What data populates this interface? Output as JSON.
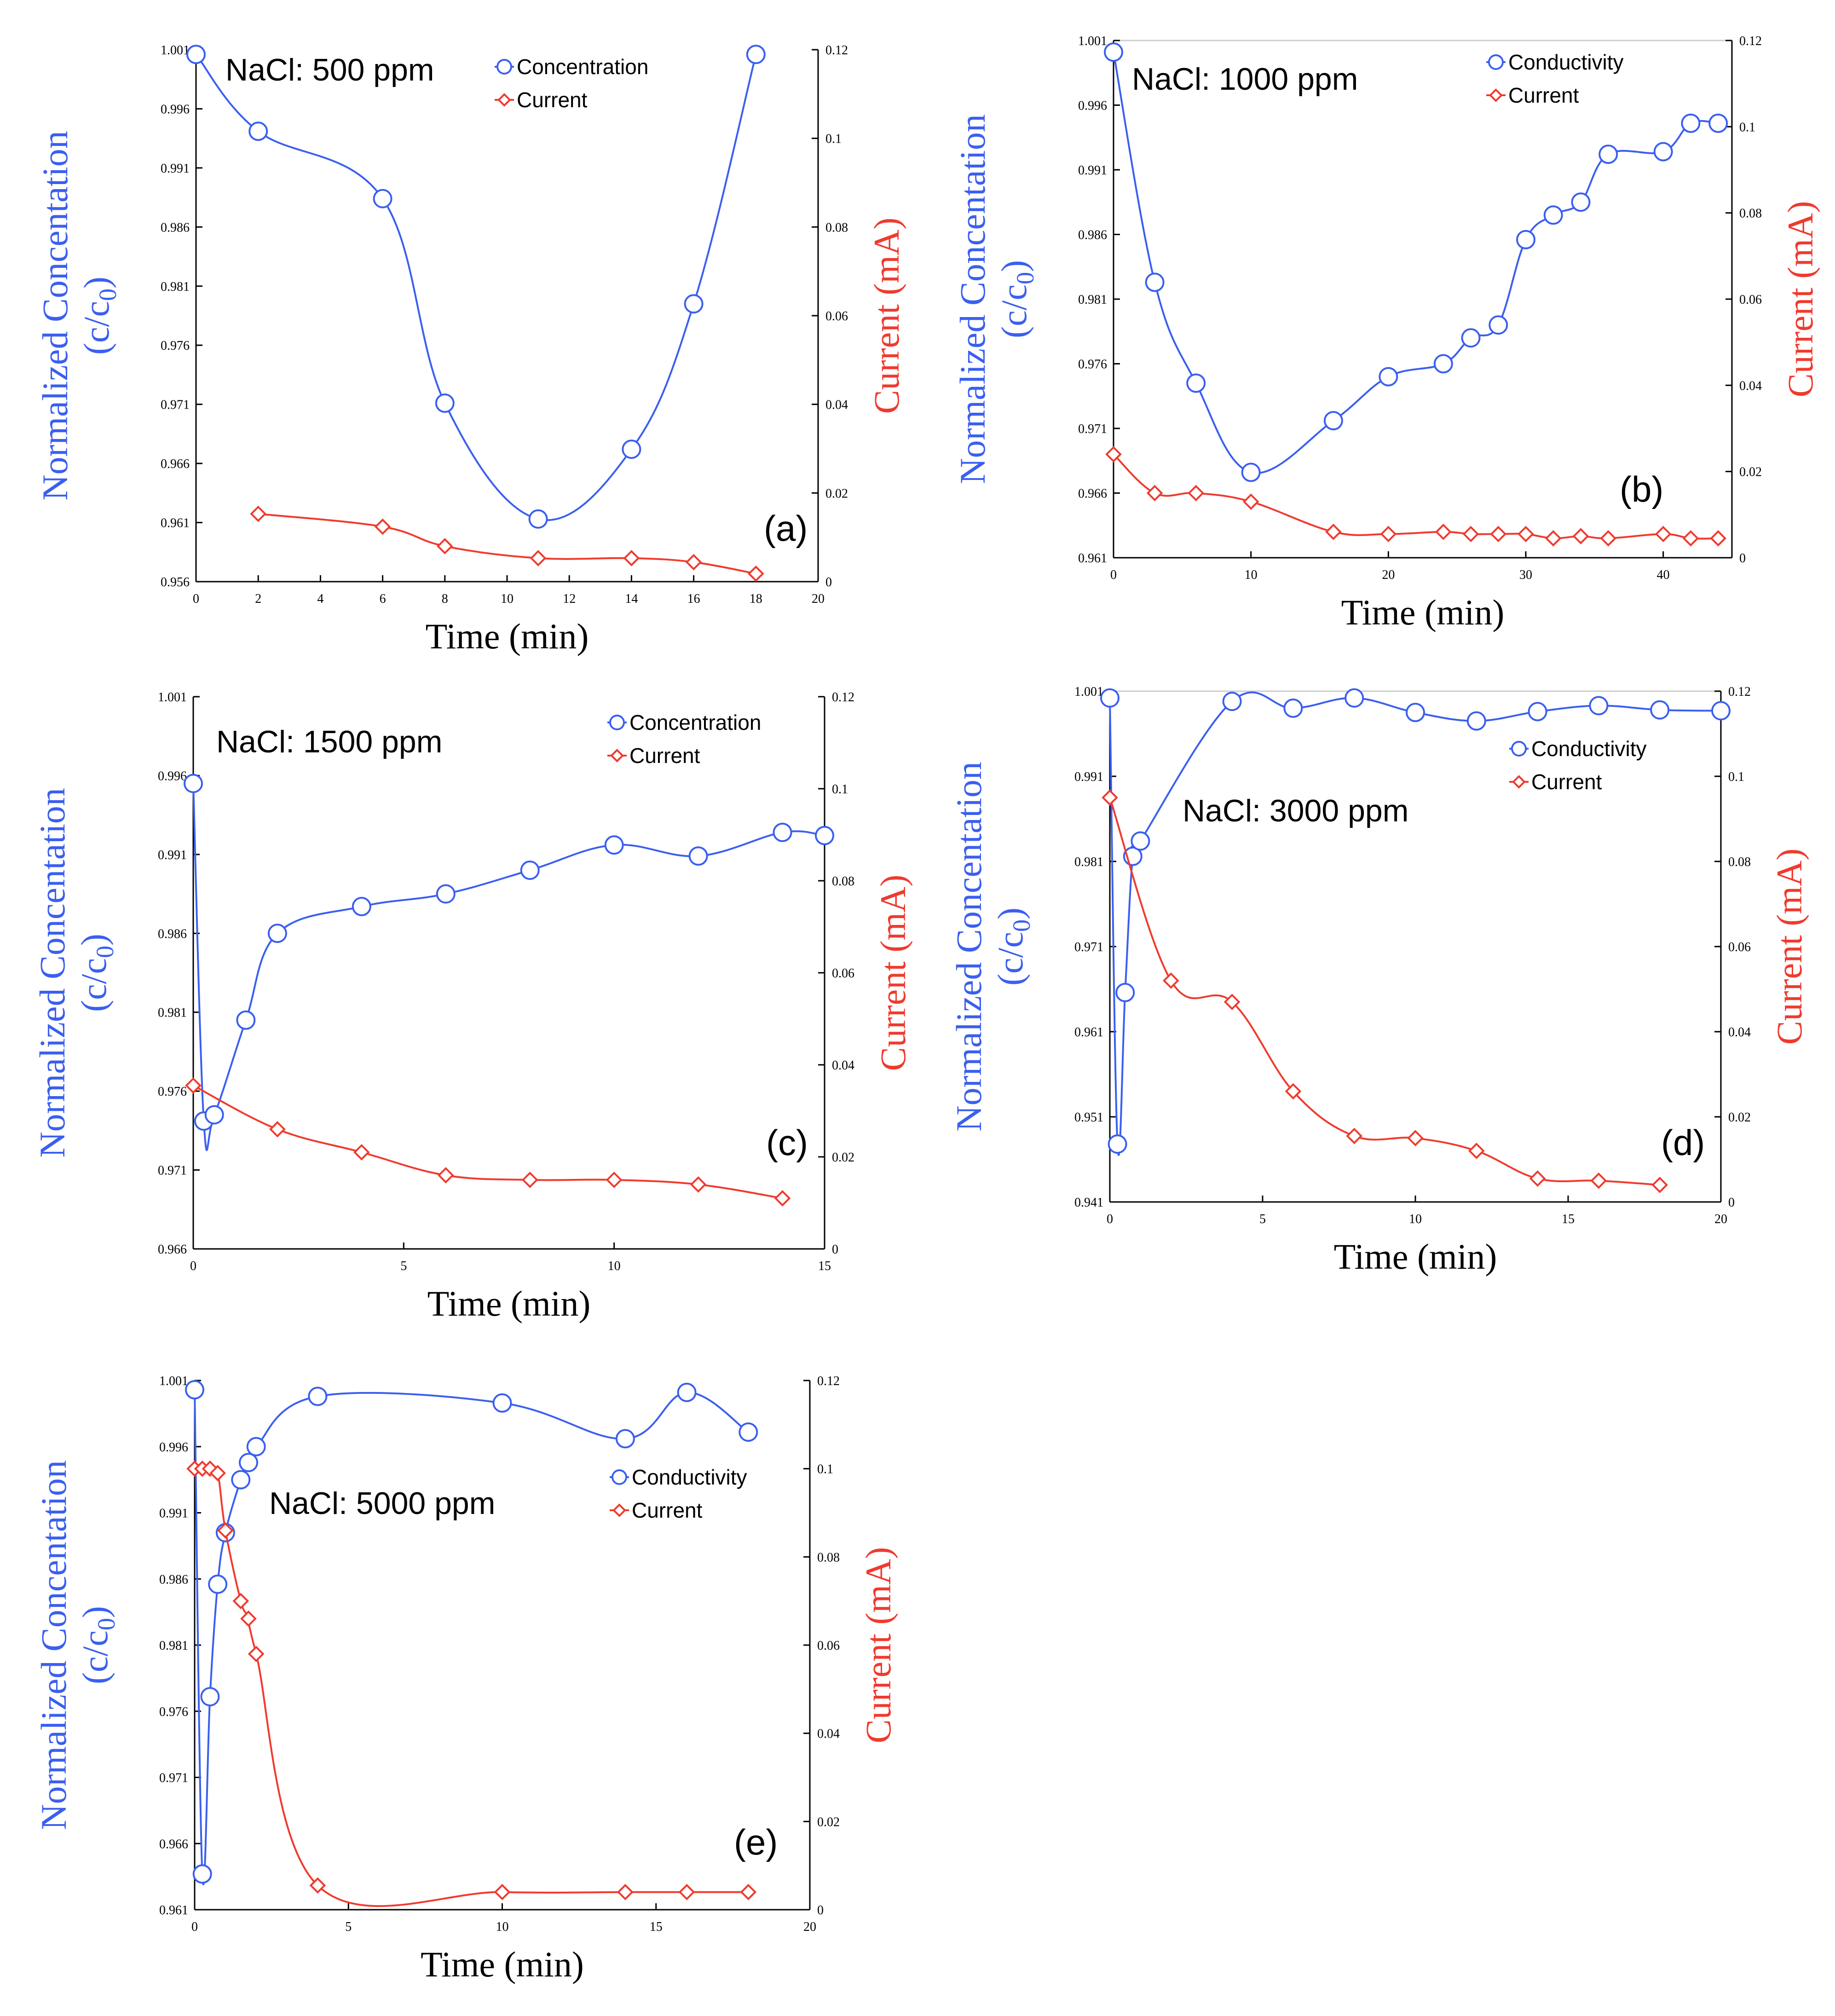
{
  "colors": {
    "concentration": "#3a5ff0",
    "current": "#f03a2e",
    "axis": "#000000",
    "frame": "#cccccc"
  },
  "chart_data": [
    {
      "id": "a",
      "type": "line",
      "panel_label": "(a)",
      "annotation": "NaCl: 500 ppm",
      "xlabel": "Time (min)",
      "ylabel_line1": "Normalized Concentation",
      "ylabel_line2": "(c/c",
      "ylabel_sub": "0",
      "ylabel_close": ")",
      "y2label": "Current (mA)",
      "xlim": [
        0,
        20
      ],
      "xticks": [
        "0",
        "2",
        "4",
        "6",
        "8",
        "10",
        "12",
        "14",
        "16",
        "18",
        "20"
      ],
      "ylim": [
        0.956,
        1.001
      ],
      "yticks": [
        "0.956",
        "0.961",
        "0.966",
        "0.971",
        "0.976",
        "0.981",
        "0.986",
        "0.991",
        "0.996",
        "1.001"
      ],
      "y2lim": [
        0,
        0.12
      ],
      "y2ticks": [
        "0",
        "0.02",
        "0.04",
        "0.06",
        "0.08",
        "0.1",
        "0.12"
      ],
      "legend": [
        "Concentration",
        "Current"
      ],
      "series": [
        {
          "name": "Concentration",
          "axis": "left",
          "marker": "circle",
          "x": [
            0,
            2,
            6,
            8,
            11,
            14,
            16,
            18
          ],
          "y": [
            1.0006,
            0.9941,
            0.9884,
            0.9711,
            0.9613,
            0.9672,
            0.9795,
            1.0006
          ]
        },
        {
          "name": "Current",
          "axis": "right",
          "marker": "diamond",
          "x": [
            2,
            6,
            8,
            11,
            14,
            16,
            18
          ],
          "y": [
            0.0153,
            0.0124,
            0.008,
            0.0053,
            0.0053,
            0.0044,
            0.0018
          ]
        }
      ]
    },
    {
      "id": "b",
      "type": "line",
      "panel_label": "(b)",
      "annotation": "NaCl: 1000 ppm",
      "xlabel": "Time (min)",
      "ylabel_line1": "Normalized Concentation",
      "ylabel_line2": "(c/c",
      "ylabel_sub": "0",
      "ylabel_close": ")",
      "y2label": "Current (mA)",
      "xlim": [
        0,
        45
      ],
      "xticks": [
        "0",
        "10",
        "20",
        "30",
        "40"
      ],
      "xtick_values": [
        0,
        10,
        20,
        30,
        40
      ],
      "ylim": [
        0.961,
        1.001
      ],
      "yticks": [
        "0.961",
        "0.966",
        "0.971",
        "0.976",
        "0.981",
        "0.986",
        "0.991",
        "0.996",
        "1.001"
      ],
      "y2lim": [
        0,
        0.12
      ],
      "y2ticks": [
        "0",
        "0.02",
        "0.04",
        "0.06",
        "0.08",
        "0.1",
        "0.12"
      ],
      "legend": [
        "Conductivity",
        "Current"
      ],
      "series": [
        {
          "name": "Conductivity",
          "axis": "left",
          "marker": "circle",
          "x": [
            0,
            3,
            6,
            10,
            16,
            20,
            24,
            26,
            28,
            30,
            32,
            34,
            36,
            40,
            42,
            44
          ],
          "y": [
            1.0001,
            0.9823,
            0.9745,
            0.9676,
            0.9716,
            0.975,
            0.976,
            0.978,
            0.979,
            0.9856,
            0.9875,
            0.9885,
            0.9922,
            0.9924,
            0.9946,
            0.9946
          ]
        },
        {
          "name": "Current",
          "axis": "right",
          "marker": "diamond",
          "x": [
            0,
            3,
            6,
            10,
            16,
            20,
            24,
            26,
            28,
            30,
            32,
            34,
            36,
            40,
            42,
            44
          ],
          "y": [
            0.024,
            0.015,
            0.015,
            0.013,
            0.006,
            0.0055,
            0.006,
            0.0055,
            0.0055,
            0.0055,
            0.0045,
            0.005,
            0.0045,
            0.0055,
            0.0045,
            0.0045
          ]
        }
      ]
    },
    {
      "id": "c",
      "type": "line",
      "panel_label": "(c)",
      "annotation": "NaCl: 1500 ppm",
      "xlabel": "Time (min)",
      "ylabel_line1": "Normalized Concentation",
      "ylabel_line2": "(c/c",
      "ylabel_sub": "0",
      "ylabel_close": ")",
      "y2label": "Current (mA)",
      "xlim": [
        0,
        15
      ],
      "xticks": [
        "0",
        "5",
        "10",
        "15"
      ],
      "xtick_values": [
        0,
        5,
        10,
        15
      ],
      "ylim": [
        0.966,
        1.001
      ],
      "yticks": [
        "0.966",
        "0.971",
        "0.976",
        "0.981",
        "0.986",
        "0.991",
        "0.996",
        "1.001"
      ],
      "y2lim": [
        0,
        0.12
      ],
      "y2ticks": [
        "0",
        "0.02",
        "0.04",
        "0.06",
        "0.08",
        "0.1",
        "0.12"
      ],
      "legend": [
        "Concentration",
        "Current"
      ],
      "series": [
        {
          "name": "Concentration",
          "axis": "left",
          "marker": "circle",
          "x": [
            0,
            0.25,
            0.5,
            1.25,
            2,
            4,
            6,
            8,
            10,
            12,
            14,
            15
          ],
          "y": [
            0.9955,
            0.9741,
            0.9745,
            0.9805,
            0.986,
            0.9877,
            0.9885,
            0.99,
            0.9916,
            0.9909,
            0.9924,
            0.9922
          ]
        },
        {
          "name": "Current",
          "axis": "right",
          "marker": "diamond",
          "x": [
            0,
            2,
            4,
            6,
            8,
            10,
            12,
            14
          ],
          "y": [
            0.0355,
            0.026,
            0.021,
            0.016,
            0.015,
            0.015,
            0.014,
            0.011
          ]
        }
      ]
    },
    {
      "id": "d",
      "type": "line",
      "panel_label": "(d)",
      "annotation": "NaCl: 3000 ppm",
      "xlabel": "Time (min)",
      "ylabel_line1": "Normalized Concentation",
      "ylabel_line2": "(c/c",
      "ylabel_sub": "0",
      "ylabel_close": ")",
      "y2label": "Current (mA)",
      "xlim": [
        0,
        20
      ],
      "xticks": [
        "0",
        "5",
        "10",
        "15",
        "20"
      ],
      "xtick_values": [
        0,
        5,
        10,
        15,
        20
      ],
      "ylim": [
        0.941,
        1.001
      ],
      "yticks": [
        "0.941",
        "0.951",
        "0.961",
        "0.971",
        "0.981",
        "0.991",
        "1.001"
      ],
      "y2lim": [
        0,
        0.12
      ],
      "y2ticks": [
        "0",
        "0.02",
        "0.04",
        "0.06",
        "0.08",
        "0.1",
        "0.12"
      ],
      "legend": [
        "Conductivity",
        "Current"
      ],
      "series": [
        {
          "name": "Conductivity",
          "axis": "left",
          "marker": "circle",
          "x": [
            0,
            0.25,
            0.5,
            0.75,
            1,
            4,
            6,
            8,
            10,
            12,
            14,
            16,
            18,
            20
          ],
          "y": [
            1.0002,
            0.9478,
            0.9656,
            0.9816,
            0.9834,
            0.9998,
            0.999,
            1.0002,
            0.9985,
            0.9975,
            0.9986,
            0.9993,
            0.9988,
            0.9987
          ]
        },
        {
          "name": "Current",
          "axis": "right",
          "marker": "diamond",
          "x": [
            0,
            2,
            4,
            6,
            8,
            10,
            12,
            14,
            16,
            18
          ],
          "y": [
            0.095,
            0.052,
            0.047,
            0.026,
            0.0155,
            0.015,
            0.012,
            0.0055,
            0.005,
            0.004
          ]
        }
      ]
    },
    {
      "id": "e",
      "type": "line",
      "panel_label": "(e)",
      "annotation": "NaCl: 5000 ppm",
      "xlabel": "Time (min)",
      "ylabel_line1": "Normalized Concentation",
      "ylabel_line2": "(c/c",
      "ylabel_sub": "0",
      "ylabel_close": ")",
      "y2label": "Current (mA)",
      "xlim": [
        0,
        20
      ],
      "xticks": [
        "0",
        "5",
        "10",
        "15",
        "20"
      ],
      "xtick_values": [
        0,
        5,
        10,
        15,
        20
      ],
      "ylim": [
        0.961,
        1.001
      ],
      "yticks": [
        "0.961",
        "0.966",
        "0.971",
        "0.976",
        "0.981",
        "0.986",
        "0.991",
        "0.996",
        "1.001"
      ],
      "y2lim": [
        0,
        0.12
      ],
      "y2ticks": [
        "0",
        "0.02",
        "0.04",
        "0.06",
        "0.08",
        "0.1",
        "0.12"
      ],
      "legend": [
        "Conductivity",
        "Current"
      ],
      "series": [
        {
          "name": "Conductivity",
          "axis": "left",
          "marker": "circle",
          "x": [
            0,
            0.25,
            0.5,
            0.75,
            1,
            1.5,
            1.75,
            2,
            4,
            10,
            14,
            16,
            18
          ],
          "y": [
            1.0003,
            0.9637,
            0.9771,
            0.9856,
            0.9895,
            0.9935,
            0.9948,
            0.996,
            0.9998,
            0.9993,
            0.9966,
            1.0001,
            0.9971
          ]
        },
        {
          "name": "Current",
          "axis": "right",
          "marker": "diamond",
          "x": [
            0,
            0.25,
            0.5,
            0.75,
            1,
            1.5,
            1.75,
            2,
            4,
            10,
            14,
            16,
            18
          ],
          "y": [
            0.1,
            0.1,
            0.1,
            0.099,
            0.086,
            0.07,
            0.066,
            0.058,
            0.0055,
            0.004,
            0.004,
            0.004,
            0.004
          ]
        }
      ]
    }
  ]
}
